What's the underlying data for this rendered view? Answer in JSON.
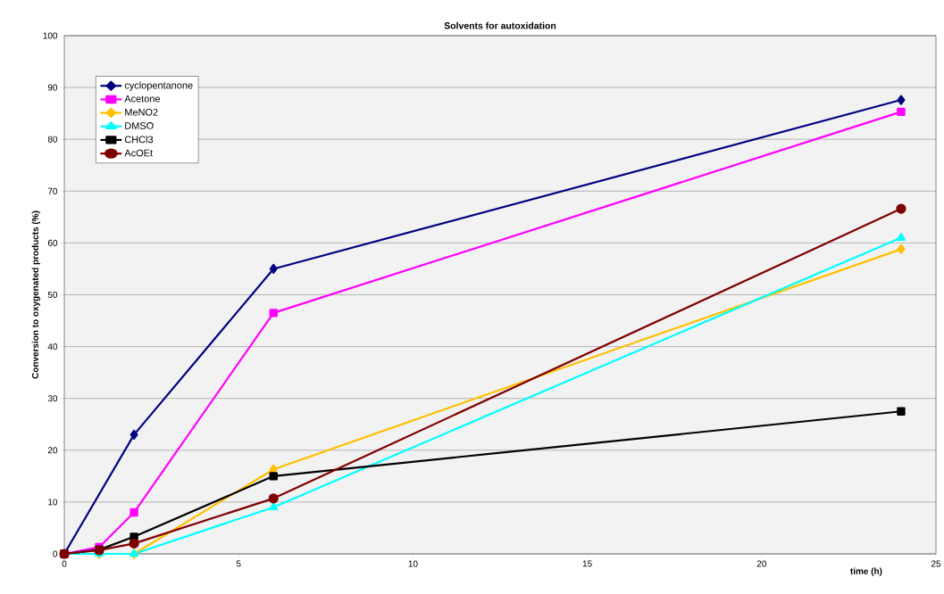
{
  "chart_data": {
    "type": "line",
    "title": "Solvents for autoxidation",
    "xlabel": "time (h)",
    "ylabel": "Conversion to oxygenated products (%)",
    "x": [
      0,
      1,
      2,
      6,
      24
    ],
    "series": [
      {
        "name": "cyclopentanone",
        "color": "#000080",
        "marker": "diamond",
        "x": [
          0,
          2,
          6,
          24
        ],
        "values": [
          0,
          23,
          55,
          87.6
        ]
      },
      {
        "name": "Acetone",
        "color": "#ff00ff",
        "marker": "square",
        "values": [
          0,
          1.3,
          8,
          46.5,
          85.3
        ]
      },
      {
        "name": "MeNO2",
        "color": "#ffc000",
        "marker": "diamond",
        "values": [
          0,
          0,
          0,
          16.3,
          58.8
        ]
      },
      {
        "name": "DMSO",
        "color": "#00ffff",
        "marker": "triangle",
        "values": [
          0,
          0,
          0,
          9,
          61
        ]
      },
      {
        "name": "CHCl3",
        "color": "#000000",
        "marker": "square",
        "values": [
          0,
          0.8,
          3.3,
          15,
          27.5
        ]
      },
      {
        "name": "AcOEt",
        "color": "#800000",
        "marker": "circle",
        "values": [
          0,
          0.7,
          2,
          10.7,
          66.6
        ]
      }
    ],
    "xlim": [
      0,
      25
    ],
    "xticks": [
      0,
      5,
      10,
      15,
      20,
      25
    ],
    "ylim": [
      0,
      100
    ],
    "yticks": [
      0,
      10,
      20,
      30,
      40,
      50,
      60,
      70,
      80,
      90,
      100
    ],
    "grid": "y",
    "legend": "top left",
    "line_style": "solid"
  }
}
